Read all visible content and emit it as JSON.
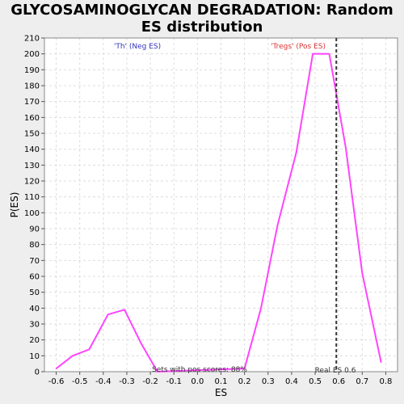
{
  "chart_data": {
    "type": "line",
    "title_line1": "GLYCOSAMINOGLYCAN DEGRADATION: Random",
    "title_line2": "ES distribution",
    "xlabel": "ES",
    "ylabel": "P(ES)",
    "xlim": [
      -0.65,
      0.85
    ],
    "ylim": [
      0,
      210
    ],
    "x_ticks": [
      -0.6,
      -0.5,
      -0.4,
      -0.3,
      -0.2,
      -0.1,
      0.0,
      0.1,
      0.2,
      0.3,
      0.4,
      0.5,
      0.6,
      0.7,
      0.8
    ],
    "x_tick_labels": [
      "-0.6",
      "-0.5",
      "-0.4",
      "-0.3",
      "-0.2",
      "-0.1",
      "0.0",
      "0.1",
      "0.2",
      "0.3",
      "0.4",
      "0.5",
      "0.6",
      "0.7",
      "0.8"
    ],
    "y_ticks": [
      0,
      10,
      20,
      30,
      40,
      50,
      60,
      70,
      80,
      90,
      100,
      110,
      120,
      130,
      140,
      150,
      160,
      170,
      180,
      190,
      200,
      210
    ],
    "grid": true,
    "series": [
      {
        "color": "#ff44ff",
        "x": [
          -0.6,
          -0.53,
          -0.46,
          -0.38,
          -0.31,
          -0.24,
          -0.17,
          0.2,
          0.27,
          0.34,
          0.42,
          0.49,
          0.56,
          0.63,
          0.7,
          0.78
        ],
        "y": [
          2,
          10,
          14,
          36,
          39,
          18,
          0,
          2,
          40,
          92,
          138,
          200,
          200,
          141,
          62,
          6
        ]
      }
    ],
    "real_es": 0.59,
    "annotations": {
      "neg_label": "'Th' (Neg ES)",
      "pos_label": "'Tregs' (Pos ES)",
      "pos_scores": "Sets with pos scores: 88%",
      "real_es_label": "Real ES 0.6"
    },
    "colors": {
      "neg": "#3333bb",
      "pos": "#dd3333",
      "line": "#ff44ff",
      "real_es_line": "#333333"
    }
  }
}
